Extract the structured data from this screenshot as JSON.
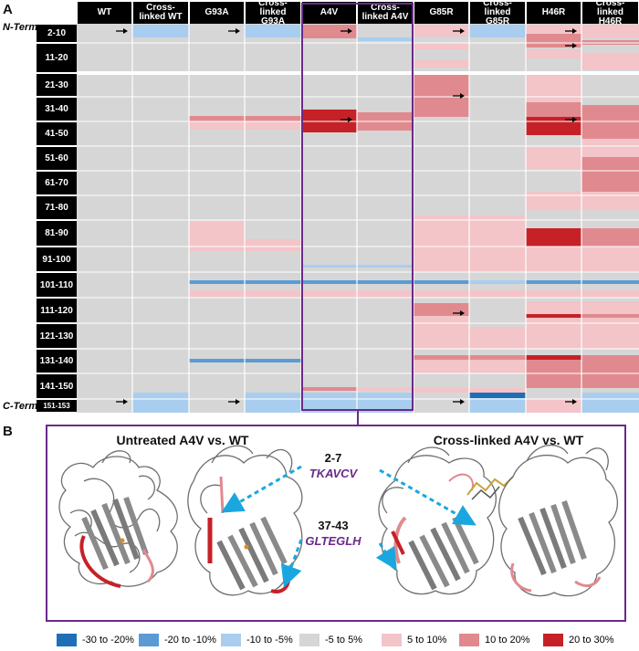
{
  "panel_a": {
    "label": "A",
    "n_term": "N-Term",
    "c_term": "C-Term",
    "columns": [
      "WT",
      "Cross-linked WT",
      "G93A",
      "Cross-linked G93A",
      "A4V",
      "Cross-linked A4V",
      "G85R",
      "Cross-linked G85R",
      "H46R",
      "Cross-linked H46R"
    ],
    "rows": [
      "2-10",
      "11-20",
      "21-30",
      "31-40",
      "41-50",
      "51-60",
      "61-70",
      "71-80",
      "81-90",
      "91-100",
      "101-110",
      "111-120",
      "121-130",
      "131-140",
      "141-150",
      "151-153"
    ]
  },
  "panel_b": {
    "label": "B",
    "title_left": "Untreated A4V vs. WT",
    "title_right": "Cross-linked A4V vs. WT",
    "annotation_1_residues": "2-7",
    "annotation_1_sequence": "TKAVCV",
    "annotation_2_residues": "37-43",
    "annotation_2_sequence": "GLTEGLH"
  },
  "legend": [
    {
      "label": "-30 to -20%",
      "color": "#1f6fb8"
    },
    {
      "label": "-20 to -10%",
      "color": "#5a9bd5"
    },
    {
      "label": "-10 to -5%",
      "color": "#a9cdee"
    },
    {
      "label": "-5 to 5%",
      "color": "#d6d6d6"
    },
    {
      "label": "5 to 10%",
      "color": "#f3c4c8"
    },
    {
      "label": "10 to 20%",
      "color": "#e08a8f"
    },
    {
      "label": "20 to 30%",
      "color": "#c62127"
    }
  ],
  "colors": {
    "neutral": "#d6d6d6",
    "highlight_box": "#6a2a8a",
    "arrow_cyan": "#1aa7e0"
  }
}
